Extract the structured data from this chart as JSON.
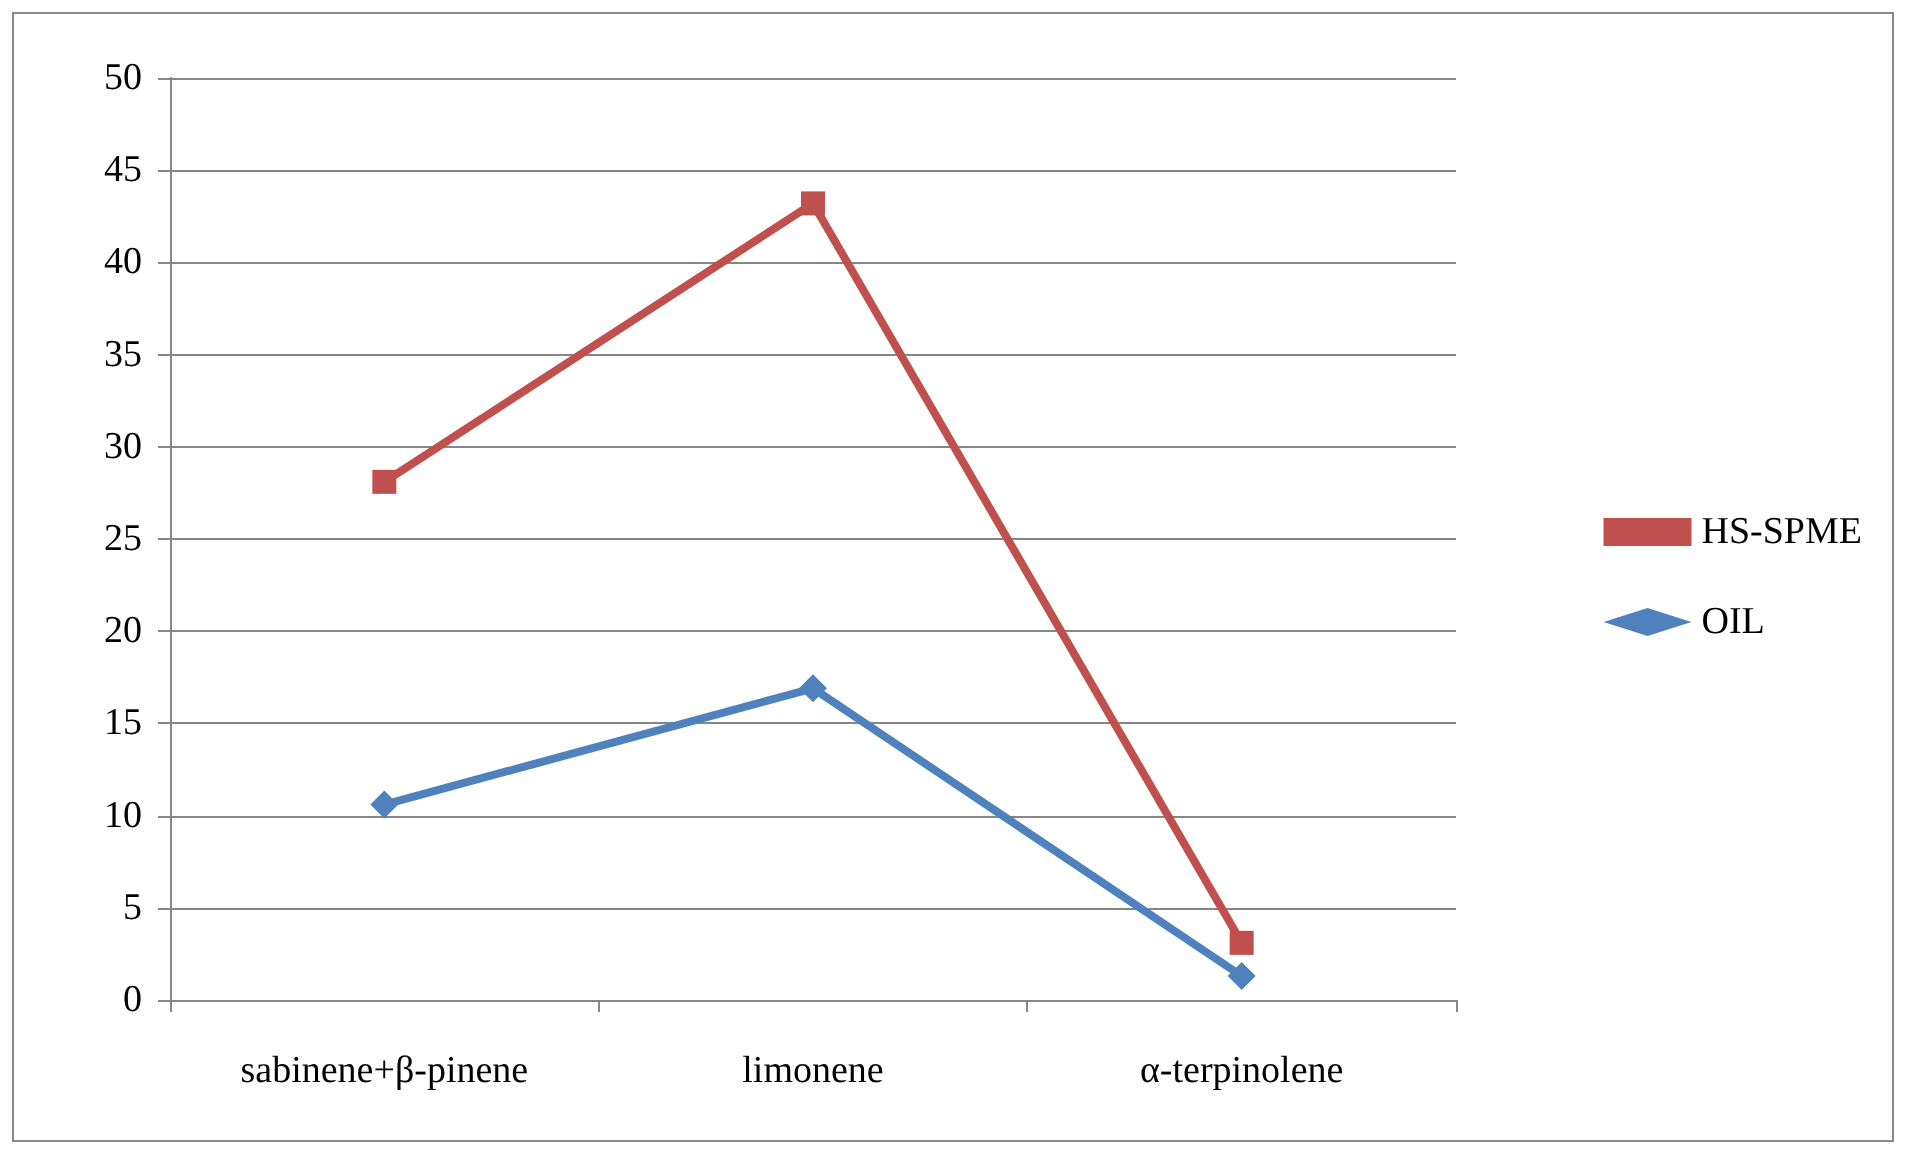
{
  "chart_data": {
    "type": "line",
    "categories": [
      "sabinene+β-pinene",
      "limonene",
      "α-terpinolene"
    ],
    "series": [
      {
        "name": "HS-SPME",
        "color": "#c0504d",
        "marker": "square",
        "values": [
          28.1,
          43.2,
          3.1
        ]
      },
      {
        "name": "OIL",
        "color": "#4f81bd",
        "marker": "diamond",
        "values": [
          10.6,
          16.9,
          1.3
        ]
      }
    ],
    "ylim": [
      0,
      50
    ],
    "yticks": [
      0,
      5,
      10,
      15,
      20,
      25,
      30,
      35,
      40,
      45,
      50
    ],
    "grid": "y",
    "legend": "right",
    "line_style": "solid"
  }
}
